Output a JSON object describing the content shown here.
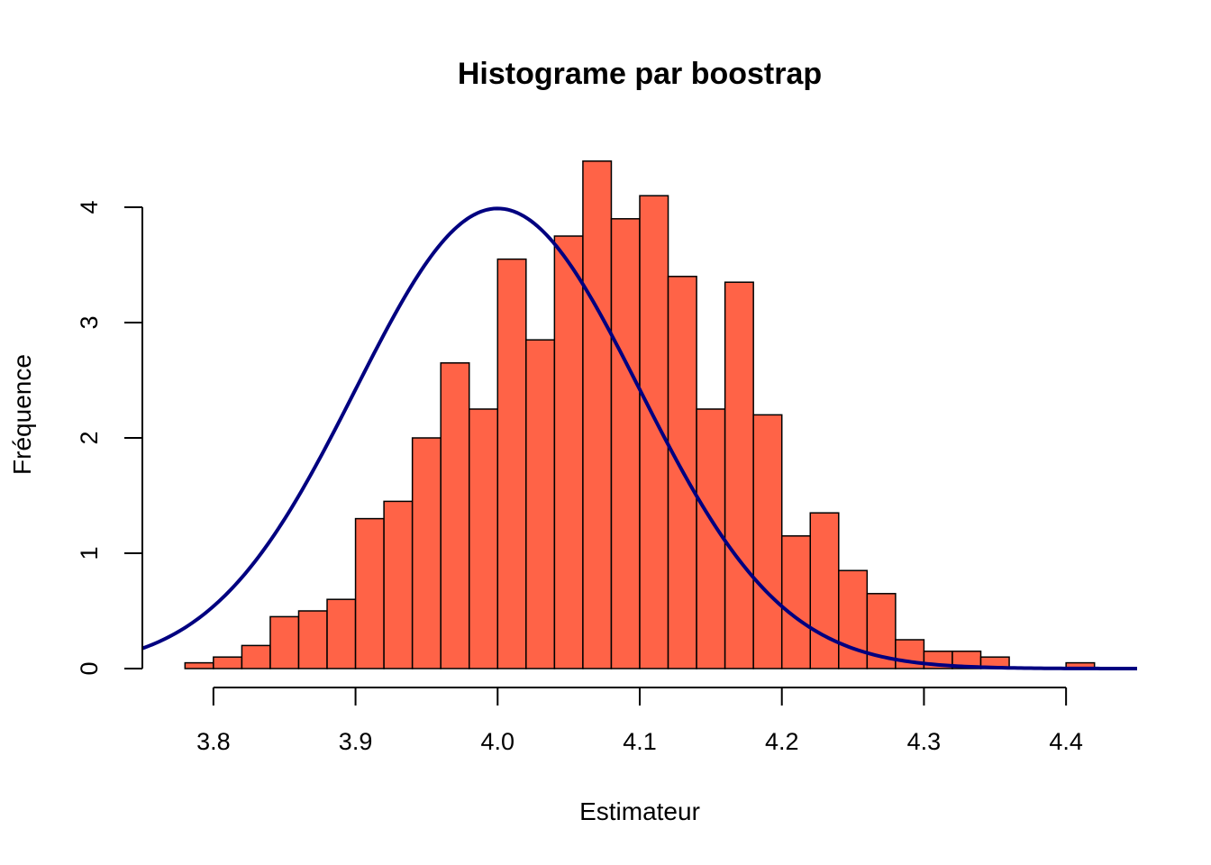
{
  "chart_data": {
    "type": "bar",
    "title": "Histograme par boostrap",
    "xlabel": "Estimateur",
    "ylabel": "Fréquence",
    "bin_width": 0.02,
    "bins": [
      {
        "x0": 3.78,
        "x1": 3.8,
        "density": 0.05
      },
      {
        "x0": 3.8,
        "x1": 3.82,
        "density": 0.1
      },
      {
        "x0": 3.82,
        "x1": 3.84,
        "density": 0.2
      },
      {
        "x0": 3.84,
        "x1": 3.86,
        "density": 0.45
      },
      {
        "x0": 3.86,
        "x1": 3.88,
        "density": 0.5
      },
      {
        "x0": 3.88,
        "x1": 3.9,
        "density": 0.6
      },
      {
        "x0": 3.9,
        "x1": 3.92,
        "density": 1.3
      },
      {
        "x0": 3.92,
        "x1": 3.94,
        "density": 1.45
      },
      {
        "x0": 3.94,
        "x1": 3.96,
        "density": 2.0
      },
      {
        "x0": 3.96,
        "x1": 3.98,
        "density": 2.65
      },
      {
        "x0": 3.98,
        "x1": 4.0,
        "density": 2.25
      },
      {
        "x0": 4.0,
        "x1": 4.02,
        "density": 3.55
      },
      {
        "x0": 4.02,
        "x1": 4.04,
        "density": 2.85
      },
      {
        "x0": 4.04,
        "x1": 4.06,
        "density": 3.75
      },
      {
        "x0": 4.06,
        "x1": 4.08,
        "density": 4.4
      },
      {
        "x0": 4.08,
        "x1": 4.1,
        "density": 3.9
      },
      {
        "x0": 4.1,
        "x1": 4.12,
        "density": 4.1
      },
      {
        "x0": 4.12,
        "x1": 4.14,
        "density": 3.4
      },
      {
        "x0": 4.14,
        "x1": 4.16,
        "density": 2.25
      },
      {
        "x0": 4.16,
        "x1": 4.18,
        "density": 3.35
      },
      {
        "x0": 4.18,
        "x1": 4.2,
        "density": 2.2
      },
      {
        "x0": 4.2,
        "x1": 4.22,
        "density": 1.15
      },
      {
        "x0": 4.22,
        "x1": 4.24,
        "density": 1.35
      },
      {
        "x0": 4.24,
        "x1": 4.26,
        "density": 0.85
      },
      {
        "x0": 4.26,
        "x1": 4.28,
        "density": 0.65
      },
      {
        "x0": 4.28,
        "x1": 4.3,
        "density": 0.25
      },
      {
        "x0": 4.3,
        "x1": 4.32,
        "density": 0.15
      },
      {
        "x0": 4.32,
        "x1": 4.34,
        "density": 0.15
      },
      {
        "x0": 4.34,
        "x1": 4.36,
        "density": 0.1
      },
      {
        "x0": 4.4,
        "x1": 4.42,
        "density": 0.05
      }
    ],
    "curve": {
      "kind": "normal-density",
      "mean": 4.0,
      "sd": 0.1,
      "x_range": [
        3.75,
        4.45
      ]
    },
    "xlim": [
      3.75,
      4.45
    ],
    "ylim": [
      0,
      4.4
    ],
    "xticks": [
      3.8,
      3.9,
      4.0,
      4.1,
      4.2,
      4.3,
      4.4
    ],
    "xtick_labels": [
      "3.8",
      "3.9",
      "4.0",
      "4.1",
      "4.2",
      "4.3",
      "4.4"
    ],
    "yticks": [
      0,
      1,
      2,
      3,
      4
    ],
    "ytick_labels": [
      "0",
      "1",
      "2",
      "3",
      "4"
    ],
    "bar_color": "#FF6347",
    "curve_color": "#000080",
    "grid": false,
    "legend": "none"
  }
}
